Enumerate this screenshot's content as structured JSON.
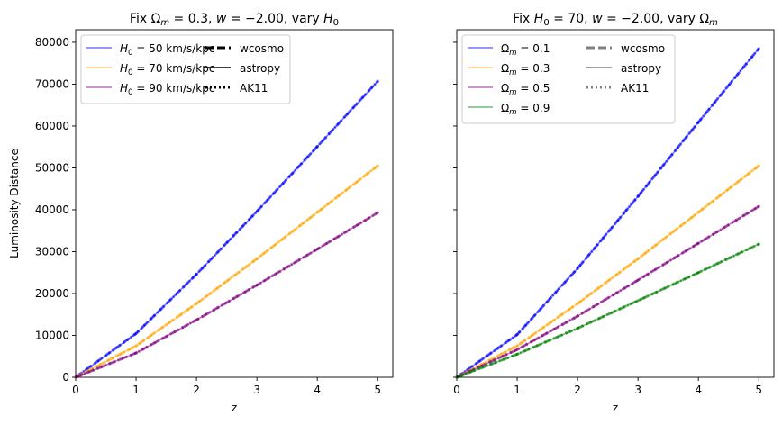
{
  "chart_data": [
    {
      "type": "line",
      "title": "Fix Ω_m = 0.3, w = −2.00, vary H_0",
      "title_parts": [
        "Fix Ω",
        "m",
        " = 0.3, ",
        "w",
        " = −2.00, vary ",
        "H",
        "0"
      ],
      "xlabel": "z",
      "ylabel": "Luminosity Distance",
      "xlim": [
        0,
        5.25
      ],
      "ylim": [
        0,
        83000
      ],
      "xticks": [
        "0",
        "1",
        "2",
        "3",
        "4",
        "5"
      ],
      "yticks": [
        "0",
        "10000",
        "20000",
        "30000",
        "40000",
        "50000",
        "60000",
        "70000",
        "80000"
      ],
      "grid": false,
      "legend_position": "top-left",
      "series": [
        {
          "name": "H_0 = 50 km/s/kpc",
          "label_parts": [
            "H",
            "0",
            " = 50 km/s/kpc"
          ],
          "color": "#0000ff",
          "x": [
            0,
            1,
            2,
            3,
            4,
            5
          ],
          "y": [
            0,
            10450,
            24600,
            39600,
            55100,
            70700
          ]
        },
        {
          "name": "H_0 = 70 km/s/kpc",
          "label_parts": [
            "H",
            "0",
            " = 70 km/s/kpc"
          ],
          "color": "#ffa500",
          "x": [
            0,
            1,
            2,
            3,
            4,
            5
          ],
          "y": [
            0,
            7500,
            17600,
            28300,
            39400,
            50500
          ]
        },
        {
          "name": "H_0 = 90 km/s/kpc",
          "label_parts": [
            "H",
            "0",
            " = 90 km/s/kpc"
          ],
          "color": "#800080",
          "x": [
            0,
            1,
            2,
            3,
            4,
            5
          ],
          "y": [
            0,
            5800,
            13700,
            22000,
            30600,
            39300
          ]
        }
      ],
      "style_legend": [
        "wcosmo",
        "astropy",
        "AK11"
      ],
      "style_color": "#000000"
    },
    {
      "type": "line",
      "title": "Fix H_0 = 70, w = −2.00, vary Ω_m",
      "title_parts": [
        "Fix ",
        "H",
        "0",
        " = 70, ",
        "w",
        " = −2.00, vary Ω",
        "m"
      ],
      "xlabel": "z",
      "ylabel": "",
      "xlim": [
        0,
        5.25
      ],
      "ylim": [
        0,
        83000
      ],
      "xticks": [
        "0",
        "1",
        "2",
        "3",
        "4",
        "5"
      ],
      "yticks": [],
      "grid": false,
      "legend_position": "top-left",
      "series": [
        {
          "name": "Ω_m = 0.1",
          "label_parts": [
            "Ω",
            "m",
            " = 0.1"
          ],
          "color": "#0000ff",
          "x": [
            0,
            1,
            2,
            3,
            4,
            5
          ],
          "y": [
            0,
            10200,
            26000,
            43200,
            60900,
            78500
          ]
        },
        {
          "name": "Ω_m = 0.3",
          "label_parts": [
            "Ω",
            "m",
            " = 0.3"
          ],
          "color": "#ffa500",
          "x": [
            0,
            1,
            2,
            3,
            4,
            5
          ],
          "y": [
            0,
            7500,
            17600,
            28300,
            39400,
            50500
          ]
        },
        {
          "name": "Ω_m = 0.5",
          "label_parts": [
            "Ω",
            "m",
            " = 0.5"
          ],
          "color": "#800080",
          "x": [
            0,
            1,
            2,
            3,
            4,
            5
          ],
          "y": [
            0,
            6600,
            14600,
            23200,
            32000,
            40800
          ]
        },
        {
          "name": "Ω_m = 0.9",
          "label_parts": [
            "Ω",
            "m",
            " = 0.9"
          ],
          "color": "#008000",
          "x": [
            0,
            1,
            2,
            3,
            4,
            5
          ],
          "y": [
            0,
            5500,
            11700,
            18300,
            25000,
            31800
          ]
        }
      ],
      "style_legend": [
        "wcosmo",
        "astropy",
        "AK11"
      ],
      "style_color": "#808080"
    }
  ]
}
